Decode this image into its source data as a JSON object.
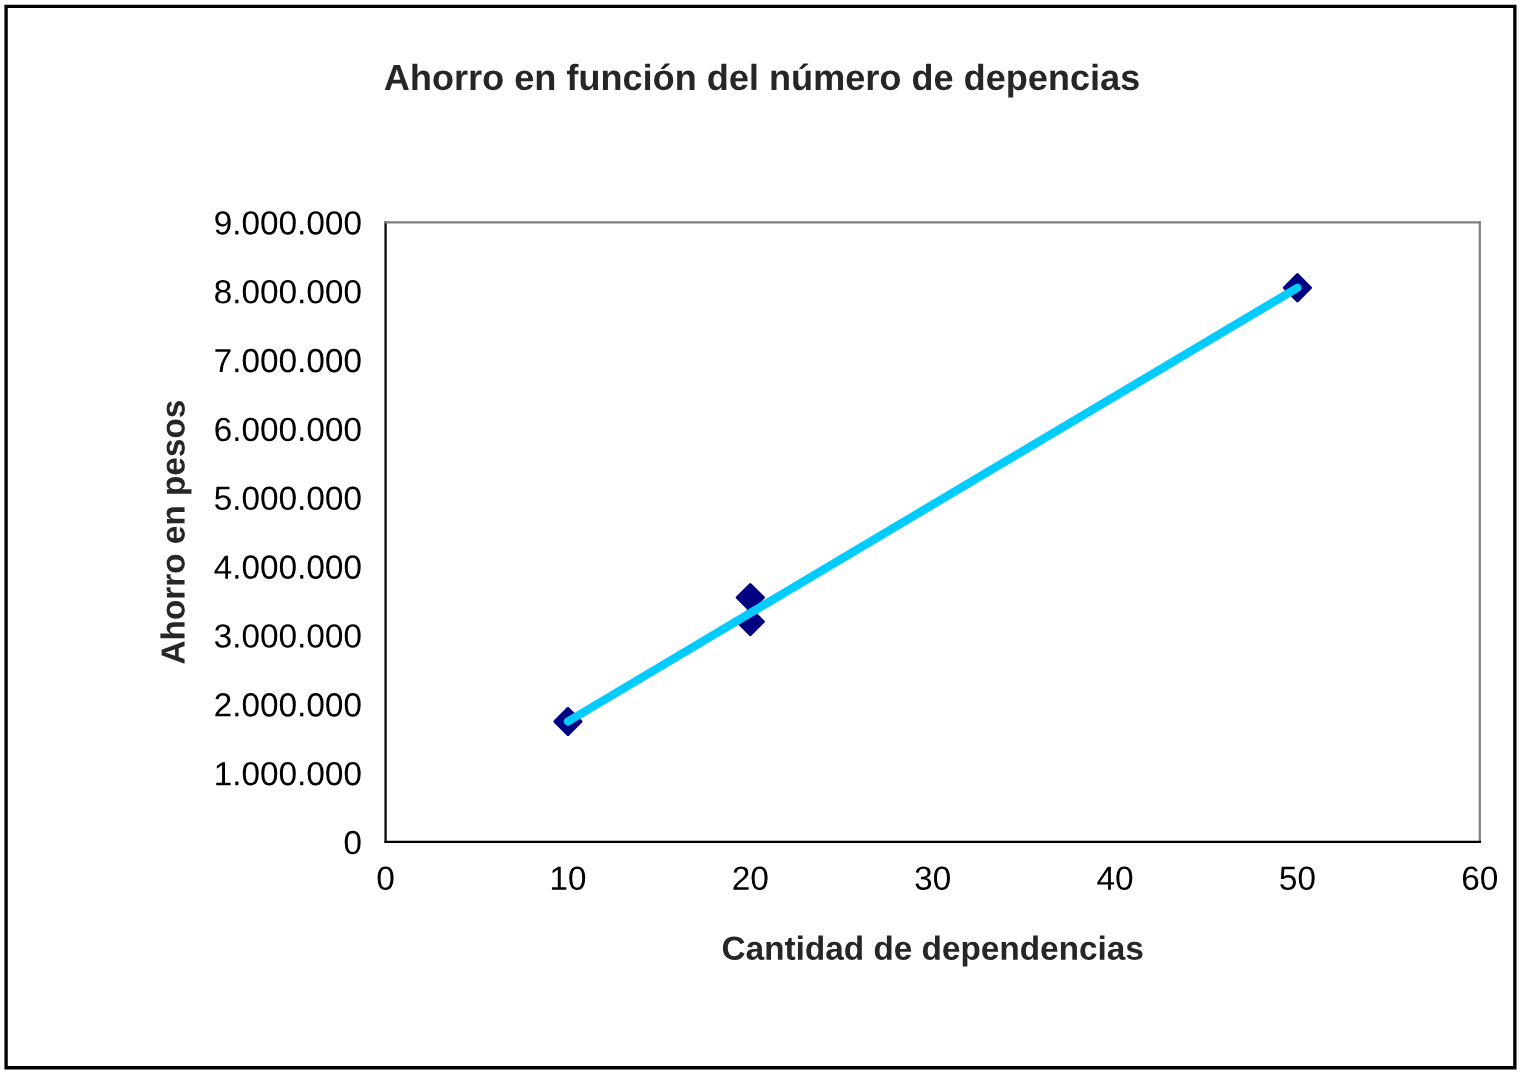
{
  "chart_data": {
    "type": "scatter",
    "title": "Ahorro en función del número de depencias",
    "xlabel": "Cantidad de dependencias",
    "ylabel": "Ahorro en pesos",
    "series": [
      {
        "marker": "diamond",
        "color": "#000080",
        "x": [
          10,
          20,
          20,
          50
        ],
        "values": [
          1750000,
          3550000,
          3200000,
          8050000
        ]
      },
      {
        "type": "line",
        "marker": "none",
        "color": "#00ccff",
        "x": [
          10,
          50
        ],
        "values": [
          1750000,
          8050000
        ]
      }
    ],
    "xlim": [
      0,
      60
    ],
    "xticks": [
      0,
      10,
      20,
      30,
      40,
      50,
      60
    ],
    "ylim": [
      0,
      9000000
    ],
    "yticks": [
      0,
      {
        "value": 1000000,
        "label": "1.000.000"
      },
      {
        "value": 2000000,
        "label": "2.000.000"
      },
      {
        "value": 3000000,
        "label": "3.000.000"
      },
      {
        "value": 4000000,
        "label": "4.000.000"
      },
      {
        "value": 5000000,
        "label": "5.000.000"
      },
      {
        "value": 6000000,
        "label": "6.000.000"
      },
      {
        "value": 7000000,
        "label": "7.000.000"
      },
      {
        "value": 8000000,
        "label": "8.000.000"
      },
      {
        "value": 9000000,
        "label": "9.000.000"
      }
    ],
    "grid": false,
    "legend": false
  }
}
